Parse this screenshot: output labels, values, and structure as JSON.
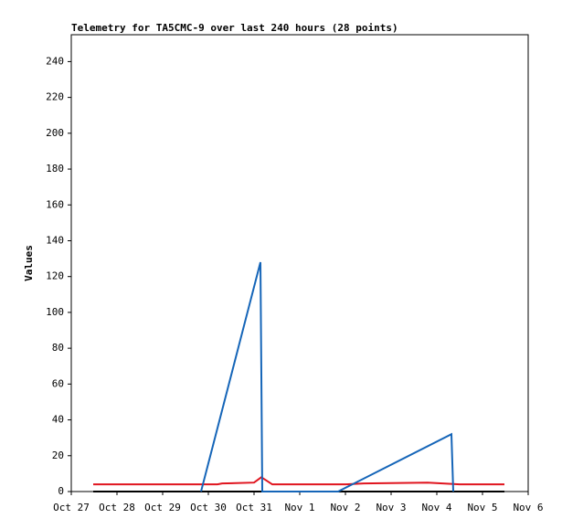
{
  "chart_data": {
    "type": "line",
    "title": "Telemetry for TA5CMC-9 over last 240 hours (28 points)",
    "ylabel": "Values",
    "xlim": [
      0,
      10
    ],
    "ylim": [
      0,
      255
    ],
    "xticks": [
      {
        "value": 0,
        "label": "Oct 27"
      },
      {
        "value": 1,
        "label": "Oct 28"
      },
      {
        "value": 2,
        "label": "Oct 29"
      },
      {
        "value": 3,
        "label": "Oct 30"
      },
      {
        "value": 4,
        "label": "Oct 31"
      },
      {
        "value": 5,
        "label": "Nov 1"
      },
      {
        "value": 6,
        "label": "Nov 2"
      },
      {
        "value": 7,
        "label": "Nov 3"
      },
      {
        "value": 8,
        "label": "Nov 4"
      },
      {
        "value": 9,
        "label": "Nov 5"
      },
      {
        "value": 10,
        "label": "Nov 6"
      }
    ],
    "yticks": [
      0,
      20,
      40,
      60,
      80,
      100,
      120,
      140,
      160,
      180,
      200,
      220,
      240
    ],
    "series": [
      {
        "color": "#000000",
        "x": [
          0.48,
          9.48
        ],
        "values": [
          0,
          0
        ]
      },
      {
        "color": "#e0141e",
        "x": [
          0.48,
          3.2,
          3.3,
          4.0,
          4.16,
          4.4,
          6.0,
          6.4,
          7.8,
          8.5,
          9.48
        ],
        "values": [
          4,
          4,
          4.5,
          5,
          8,
          4,
          4,
          4.5,
          5,
          4,
          4
        ]
      },
      {
        "color": "#1565b8",
        "x": [
          2.84,
          4.14,
          4.16,
          4.18,
          5.84,
          8.32,
          8.36
        ],
        "values": [
          0,
          128,
          65,
          0,
          0,
          32,
          0
        ]
      }
    ]
  }
}
